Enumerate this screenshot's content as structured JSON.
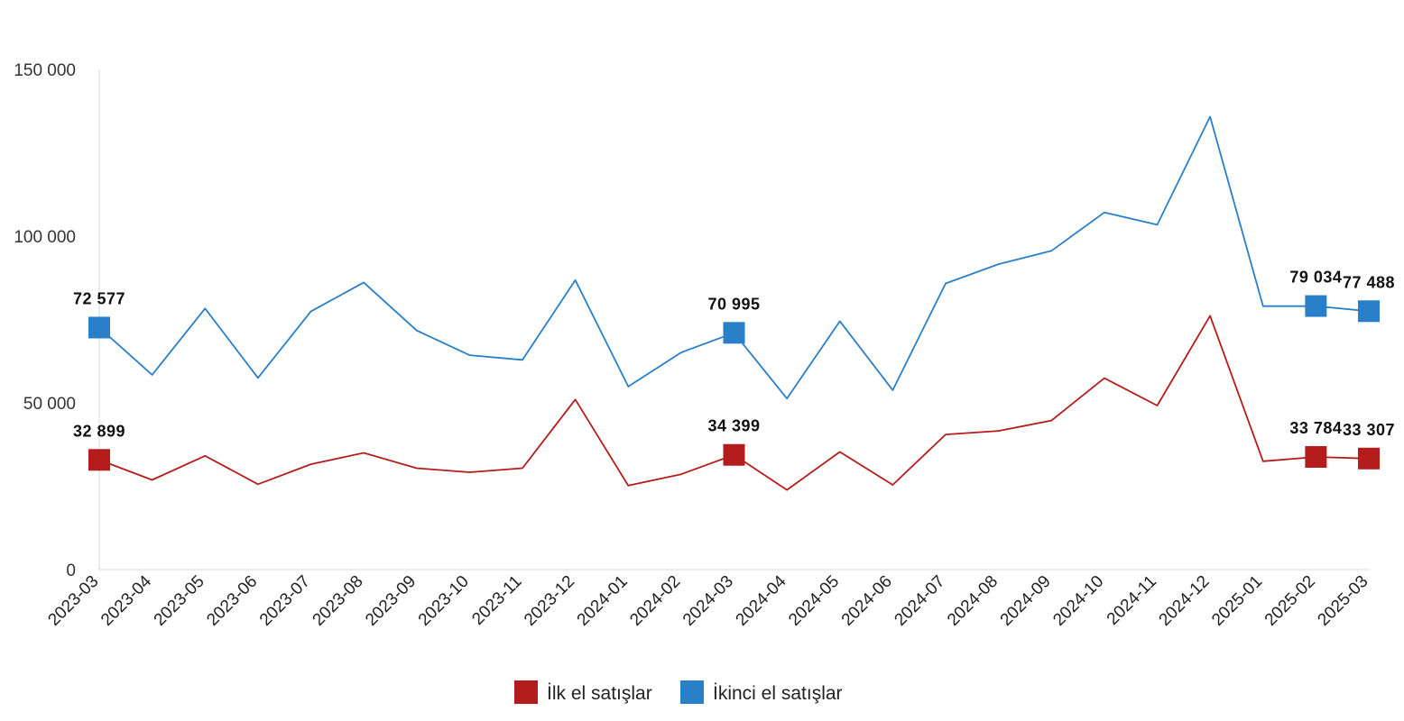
{
  "chart_data": {
    "type": "line",
    "categories": [
      "2023-03",
      "2023-04",
      "2023-05",
      "2023-06",
      "2023-07",
      "2023-08",
      "2023-09",
      "2023-10",
      "2023-11",
      "2023-12",
      "2024-01",
      "2024-02",
      "2024-03",
      "2024-04",
      "2024-05",
      "2024-06",
      "2024-07",
      "2024-08",
      "2024-09",
      "2024-10",
      "2024-11",
      "2024-12",
      "2025-01",
      "2025-02",
      "2025-03"
    ],
    "ylim": [
      0,
      150000
    ],
    "yticks": [
      0,
      50000,
      100000,
      150000
    ],
    "ytick_labels": [
      "0",
      "50 000",
      "100 000",
      "150 000"
    ],
    "grid": false,
    "legend_position": "bottom",
    "series": [
      {
        "name": "İlk el satışlar",
        "color": "#b51c1c",
        "values": [
          32899,
          26900,
          34100,
          25600,
          31600,
          35000,
          30400,
          29200,
          30400,
          51000,
          25200,
          28600,
          34399,
          23900,
          35300,
          25400,
          40500,
          41600,
          44700,
          57400,
          49200,
          76100,
          32500,
          33784,
          33307
        ],
        "markers": [
          0,
          12,
          23,
          24
        ],
        "marker_labels": [
          "32 899",
          "34 399",
          "33 784",
          "33 307"
        ]
      },
      {
        "name": "İkinci el satışlar",
        "color": "#2a7fc9",
        "values": [
          72577,
          58400,
          78300,
          57500,
          77400,
          86100,
          71700,
          64300,
          62900,
          86800,
          54900,
          65100,
          70995,
          51300,
          74500,
          53800,
          85800,
          91600,
          95600,
          107100,
          103400,
          135800,
          79000,
          79034,
          77488
        ],
        "markers": [
          0,
          12,
          23,
          24
        ],
        "marker_labels": [
          "72 577",
          "70 995",
          "79 034",
          "77 488"
        ]
      }
    ]
  }
}
